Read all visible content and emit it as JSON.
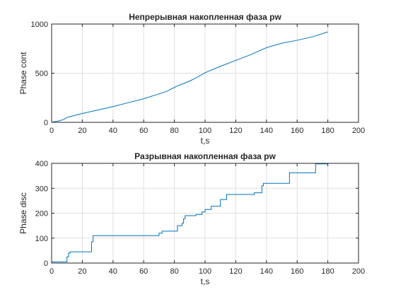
{
  "chart_data": [
    {
      "type": "line",
      "title": "Непрерывная накопленная фаза pw",
      "xlabel": "t,s",
      "ylabel": "Phase cont",
      "xlim": [
        0,
        200
      ],
      "ylim": [
        0,
        1000
      ],
      "xticks": [
        0,
        20,
        40,
        60,
        80,
        100,
        120,
        140,
        160,
        180,
        200
      ],
      "yticks": [
        0,
        500,
        1000
      ],
      "grid": true,
      "color": "#0072BD",
      "series": [
        {
          "x": [
            0,
            5,
            8,
            10,
            15,
            20,
            30,
            40,
            50,
            60,
            70,
            75,
            78,
            82,
            90,
            95,
            100,
            110,
            120,
            130,
            135,
            140,
            150,
            160,
            170,
            180
          ],
          "y": [
            0,
            15,
            30,
            50,
            70,
            90,
            125,
            160,
            200,
            240,
            290,
            315,
            340,
            370,
            420,
            460,
            505,
            570,
            630,
            690,
            725,
            760,
            805,
            835,
            870,
            920
          ]
        }
      ]
    },
    {
      "type": "line",
      "title": "Разрывная накопленная фаза pw",
      "xlabel": "t,s",
      "ylabel": "Phase disc",
      "xlim": [
        0,
        200
      ],
      "ylim": [
        0,
        400
      ],
      "xticks": [
        0,
        20,
        40,
        60,
        80,
        100,
        120,
        140,
        160,
        180,
        200
      ],
      "yticks": [
        0,
        100,
        200,
        300,
        400
      ],
      "grid": true,
      "color": "#0072BD",
      "series": [
        {
          "x": [
            0,
            10,
            10,
            11,
            11,
            12,
            12,
            26,
            26,
            27,
            27,
            70,
            70,
            72,
            72,
            82,
            82,
            85,
            85,
            86,
            86,
            87,
            87,
            94,
            94,
            98,
            98,
            100,
            100,
            104,
            104,
            110,
            110,
            114,
            114,
            132,
            132,
            137,
            137,
            138,
            138,
            155,
            155,
            172,
            172,
            180
          ],
          "y": [
            5,
            5,
            25,
            25,
            40,
            40,
            45,
            45,
            85,
            85,
            110,
            110,
            120,
            120,
            128,
            128,
            150,
            150,
            160,
            160,
            178,
            178,
            190,
            190,
            195,
            195,
            205,
            205,
            215,
            215,
            228,
            228,
            255,
            255,
            275,
            275,
            282,
            282,
            310,
            310,
            320,
            320,
            362,
            362,
            398,
            398
          ]
        }
      ]
    }
  ]
}
